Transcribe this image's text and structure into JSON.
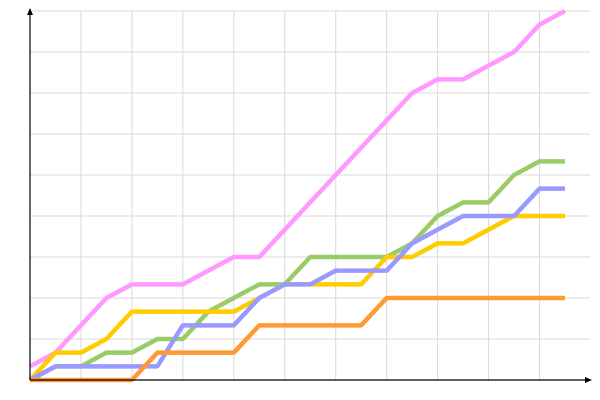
{
  "chart_data": {
    "type": "line",
    "title": "",
    "xlabel": "",
    "ylabel": "",
    "xlim": [
      0,
      21
    ],
    "ylim": [
      0,
      27
    ],
    "x_grid_step": 2,
    "y_grid_step": 3,
    "grid": true,
    "legend": "none",
    "x": [
      0,
      1,
      2,
      3,
      4,
      5,
      6,
      7,
      8,
      9,
      10,
      11,
      12,
      13,
      14,
      15,
      16,
      17,
      18,
      19,
      20,
      21
    ],
    "series": [
      {
        "color": "#ff99ff",
        "values": [
          1,
          2,
          4,
          6,
          7,
          7,
          7,
          8,
          9,
          9,
          11,
          13,
          15,
          17,
          19,
          21,
          22,
          22,
          23,
          24,
          26,
          27
        ]
      },
      {
        "color": "#99cc66",
        "values": [
          0,
          1,
          1,
          2,
          2,
          3,
          3,
          5,
          6,
          7,
          7,
          9,
          9,
          9,
          9,
          10,
          12,
          13,
          13,
          15,
          16,
          16
        ]
      },
      {
        "color": "#ffcc00",
        "values": [
          0,
          2,
          2,
          3,
          5,
          5,
          5,
          5,
          5,
          6,
          7,
          7,
          7,
          7,
          9,
          9,
          10,
          10,
          11,
          12,
          12,
          12
        ]
      },
      {
        "color": "#9999ff",
        "values": [
          0,
          1,
          1,
          1,
          1,
          1,
          4,
          4,
          4,
          6,
          7,
          7,
          8,
          8,
          8,
          10,
          11,
          12,
          12,
          12,
          14,
          14
        ]
      },
      {
        "color": "#ff9933",
        "values": [
          0,
          0,
          0,
          0,
          0,
          2,
          2,
          2,
          2,
          4,
          4,
          4,
          4,
          4,
          6,
          6,
          6,
          6,
          6,
          6,
          6,
          6
        ]
      }
    ]
  }
}
